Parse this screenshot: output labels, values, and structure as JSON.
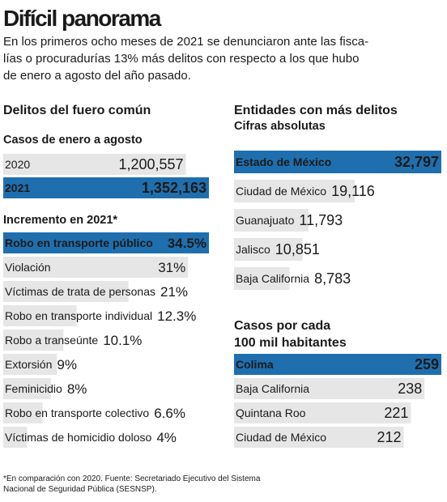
{
  "title": "Difícil panorama",
  "subtitle": [
    "En los primeros ocho meses de 2021 se denunciaron ante las fisca-",
    "lías o procuradurías 13% más delitos con respecto a los que hubo",
    "de enero a agosto del año pasado."
  ],
  "footnote": [
    "*En comparación con 2020. Fuente: Secretariado Ejecutivo del Sistema",
    "Nacional de Seguridad Pública (SESNSP)."
  ],
  "chart_data": [
    {
      "type": "bar",
      "orientation": "horizontal",
      "title": "Delitos del fuero común",
      "subtitle": "Casos de enero a agosto",
      "categories": [
        "2020",
        "2021"
      ],
      "values": [
        1200557,
        1352163
      ],
      "value_labels": [
        "1,200,557",
        "1,352,163"
      ],
      "colors": [
        "#e6e6e6",
        "#1f6fae"
      ]
    },
    {
      "type": "bar",
      "orientation": "horizontal",
      "title": "Incremento en 2021*",
      "categories": [
        "Robo en transporte público",
        "Violación",
        "Víctimas de trata de personas",
        "Robo en transporte individual",
        "Robo a transeúnte",
        "Extorsión",
        "Feminicidio",
        "Robo en transporte colectivo",
        "Víctimas de homicidio doloso"
      ],
      "values": [
        34.5,
        31,
        21,
        12.3,
        10.1,
        9,
        8,
        6.6,
        4
      ],
      "value_labels": [
        "34.5%",
        "31%",
        "21%",
        "12.3%",
        "10.1%",
        "9%",
        "8%",
        "6.6%",
        "4%"
      ],
      "colors": [
        "#1f6fae",
        "#e6e6e6",
        "#e6e6e6",
        "#e6e6e6",
        "#e6e6e6",
        "#e6e6e6",
        "#e6e6e6",
        "#e6e6e6",
        "#e6e6e6"
      ]
    },
    {
      "type": "bar",
      "orientation": "horizontal",
      "title": "Entidades con más delitos",
      "subtitle": "Cifras absolutas",
      "categories": [
        "Estado de México",
        "Ciudad de México",
        "Guanajuato",
        "Jalisco",
        "Baja California"
      ],
      "values": [
        32797,
        19116,
        11793,
        10851,
        8783
      ],
      "value_labels": [
        "32,797",
        "19,116",
        "11,793",
        "10,851",
        "8,783"
      ],
      "colors": [
        "#1f6fae",
        "#e6e6e6",
        "#e6e6e6",
        "#e6e6e6",
        "#e6e6e6"
      ]
    },
    {
      "type": "bar",
      "orientation": "horizontal",
      "title": [
        "Casos por cada",
        "100 mil habitantes"
      ],
      "categories": [
        "Colima",
        "Baja California",
        "Quintana Roo",
        "Ciudad de México"
      ],
      "values": [
        259,
        238,
        221,
        212
      ],
      "colors": [
        "#1f6fae",
        "#e6e6e6",
        "#e6e6e6",
        "#e6e6e6"
      ]
    }
  ]
}
